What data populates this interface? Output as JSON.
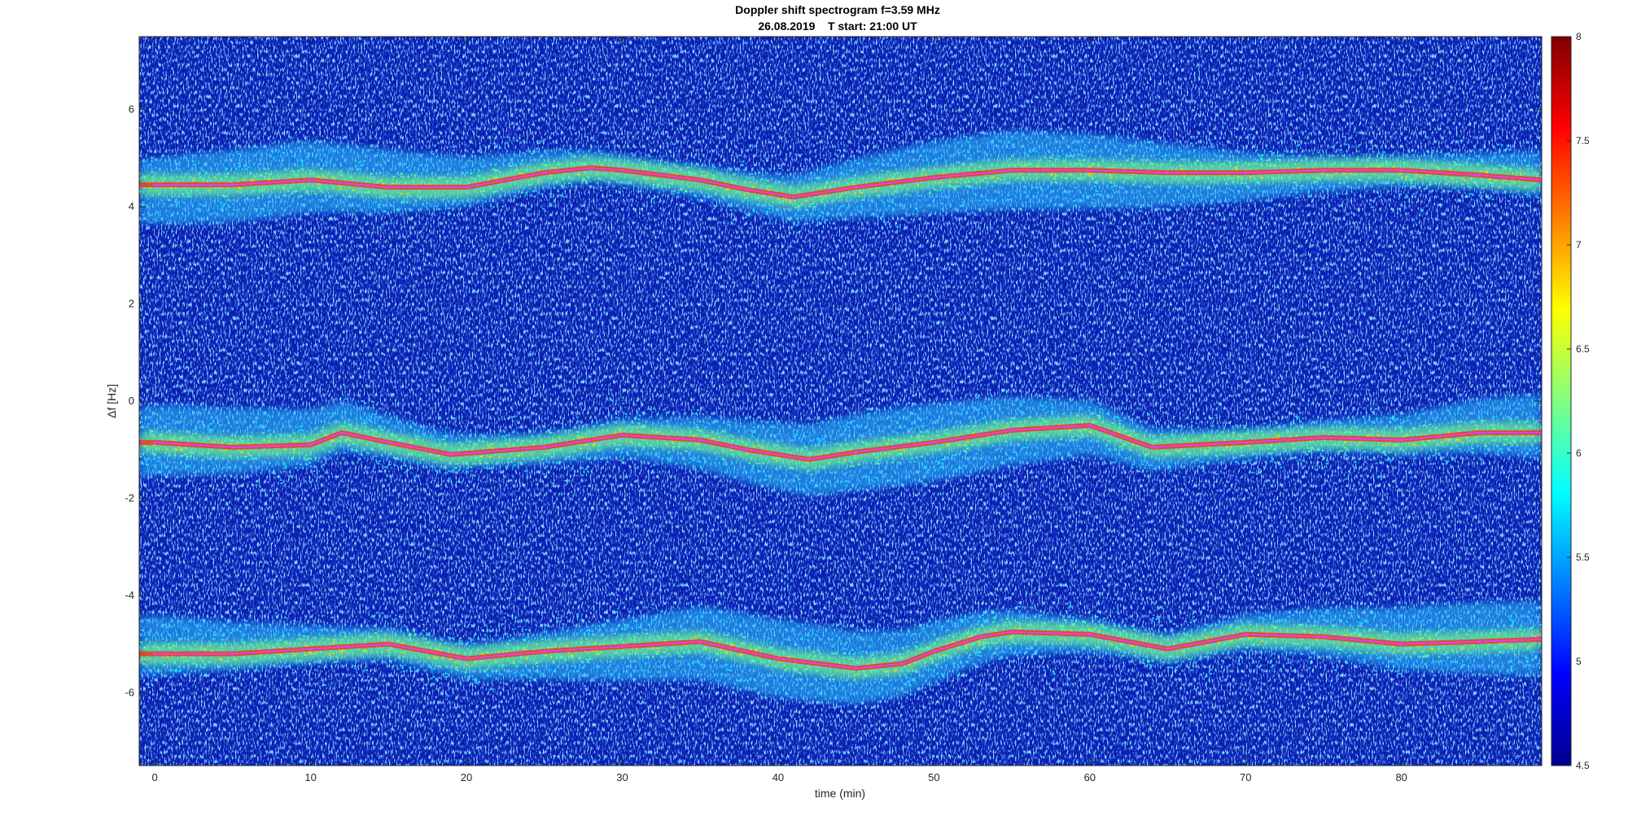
{
  "chart_data": {
    "type": "heatmap",
    "title": "Doppler shift spectrogram f=3.59 MHz",
    "subtitle": "26.08.2019    T start: 21:00 UT",
    "xlabel": "time (min)",
    "ylabel": "Δf [Hz]",
    "xlim": [
      -1,
      89
    ],
    "ylim": [
      -7.5,
      7.5
    ],
    "x_ticks": [
      0,
      10,
      20,
      30,
      40,
      50,
      60,
      70,
      80
    ],
    "y_ticks": [
      -6,
      -4,
      -2,
      0,
      2,
      4,
      6
    ],
    "colorbar": {
      "colormap": "jet",
      "range": [
        4.5,
        8
      ],
      "ticks": [
        4.5,
        5,
        5.5,
        6,
        6.5,
        7,
        7.5,
        8
      ]
    },
    "grid": false,
    "series": [
      {
        "x": [
          0,
          5,
          10,
          15,
          20,
          25,
          28,
          30,
          35,
          38,
          41,
          45,
          50,
          55,
          60,
          65,
          70,
          75,
          80,
          85,
          89
        ],
        "values": [
          4.45,
          4.45,
          4.55,
          4.4,
          4.4,
          4.7,
          4.8,
          4.75,
          4.55,
          4.35,
          4.2,
          4.4,
          4.6,
          4.75,
          4.75,
          4.7,
          4.7,
          4.75,
          4.75,
          4.65,
          4.55
        ]
      },
      {
        "x": [
          0,
          5,
          10,
          12,
          15,
          19,
          25,
          30,
          35,
          38,
          42,
          45,
          50,
          55,
          60,
          64,
          70,
          75,
          80,
          85,
          89
        ],
        "values": [
          -0.85,
          -0.95,
          -0.9,
          -0.65,
          -0.85,
          -1.1,
          -0.95,
          -0.7,
          -0.8,
          -1.0,
          -1.2,
          -1.05,
          -0.85,
          -0.6,
          -0.5,
          -0.95,
          -0.85,
          -0.75,
          -0.8,
          -0.65,
          -0.65
        ]
      },
      {
        "x": [
          0,
          5,
          10,
          15,
          20,
          25,
          30,
          35,
          40,
          45,
          48,
          50,
          53,
          55,
          60,
          65,
          70,
          75,
          80,
          85,
          89
        ],
        "values": [
          -5.2,
          -5.2,
          -5.1,
          -5.0,
          -5.3,
          -5.15,
          -5.05,
          -4.95,
          -5.3,
          -5.5,
          -5.4,
          -5.15,
          -4.85,
          -4.75,
          -4.8,
          -5.1,
          -4.8,
          -4.85,
          -5.0,
          -4.95,
          -4.9
        ]
      }
    ]
  }
}
